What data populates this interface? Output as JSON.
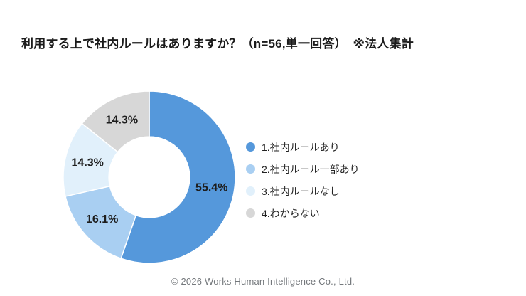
{
  "header": {
    "title": "利用する上で社内ルールはありますか？（n=56,単一回答）　※法人集計"
  },
  "chart_data": {
    "type": "pie",
    "subtype": "donut",
    "title": "利用する上で社内ルールはありますか？（n=56,単一回答）　※法人集計",
    "sample_note": "n=56,単一回答",
    "aggregation_note": "※法人集計",
    "categories": [
      "1.社内ルールあり",
      "2.社内ルール一部あり",
      "3.社内ルールなし",
      "4.わからない"
    ],
    "values": [
      55.4,
      16.1,
      14.3,
      14.3
    ],
    "value_labels": [
      "55.4%",
      "16.1%",
      "14.3%",
      "14.3%"
    ],
    "colors": [
      "#5598DB",
      "#A9CFF2",
      "#E1F0FB",
      "#D7D7D7"
    ],
    "start_angle_deg": 0,
    "direction": "clockwise",
    "donut_hole_ratio": 0.47,
    "legend_position": "right",
    "label_color": "#1e1e1e",
    "slice_border_color": "#ffffff"
  },
  "footer": {
    "copyright": "© 2026 Works Human Intelligence Co., Ltd."
  }
}
